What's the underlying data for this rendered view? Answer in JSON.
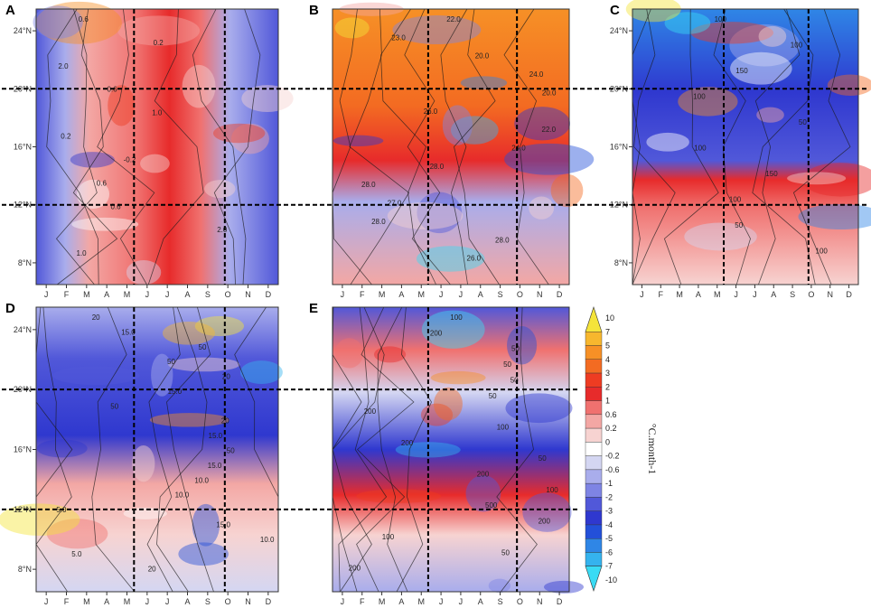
{
  "figure": {
    "colorbar": {
      "levels": [
        "10",
        "7",
        "5",
        "4",
        "3",
        "2",
        "1",
        "0.6",
        "0.2",
        "0",
        "-0.2",
        "-0.6",
        "-1",
        "-2",
        "-3",
        "-4",
        "-5",
        "-6",
        "-7",
        "-10"
      ],
      "colors": [
        "#f5e43a",
        "#f7b72e",
        "#f69026",
        "#f36b22",
        "#ee3c22",
        "#e72b2b",
        "#f0716f",
        "#f3a7a4",
        "#f7d3d1",
        "#ffffff",
        "#d4d6f2",
        "#a9adec",
        "#7e84e4",
        "#5158d9",
        "#2f38cf",
        "#2350d9",
        "#2f86e6",
        "#35b3ee",
        "#39dbf4"
      ],
      "title": "°C.month-1"
    }
  },
  "chart_data": [
    {
      "panel": "A",
      "type": "heatmap",
      "x_ticks": [
        "J",
        "F",
        "M",
        "A",
        "M",
        "J",
        "J",
        "A",
        "S",
        "O",
        "N",
        "D"
      ],
      "y_ticks": [
        "24°N",
        "20°N",
        "16°N",
        "12°N",
        "8°N"
      ],
      "ylim": [
        6.5,
        25.5
      ],
      "contour_labels": [
        "0.6",
        "0.2",
        "2.0",
        "0.6",
        "1.0",
        "0.2",
        "-0.2",
        "0.6",
        "0.6",
        "2.0",
        "1.0"
      ]
    },
    {
      "panel": "B",
      "type": "heatmap",
      "x_ticks": [
        "J",
        "F",
        "M",
        "A",
        "M",
        "J",
        "J",
        "A",
        "S",
        "O",
        "N",
        "D"
      ],
      "y_ticks": [],
      "ylim": [
        6.5,
        25.5
      ],
      "contour_labels": [
        "22.0",
        "23.0",
        "20.0",
        "24.0",
        "20.0",
        "26.0",
        "22.0",
        "24.0",
        "28.0",
        "28.0",
        "27.0",
        "28.0",
        "28.0",
        "26.0"
      ]
    },
    {
      "panel": "C",
      "type": "heatmap",
      "x_ticks": [
        "J",
        "F",
        "M",
        "A",
        "M",
        "J",
        "J",
        "A",
        "S",
        "O",
        "N",
        "D"
      ],
      "y_ticks": [
        "24°N",
        "20°N",
        "16°N",
        "12°N",
        "8°N"
      ],
      "ylim": [
        6.5,
        25.5
      ],
      "contour_labels": [
        "100",
        "100",
        "150",
        "100",
        "50",
        "100",
        "150",
        "100",
        "50",
        "100"
      ]
    },
    {
      "panel": "D",
      "type": "heatmap",
      "x_ticks": [
        "J",
        "F",
        "M",
        "A",
        "M",
        "J",
        "J",
        "A",
        "S",
        "O",
        "N",
        "D"
      ],
      "y_ticks": [
        "24°N",
        "20°N",
        "16°N",
        "12°N",
        "8°N"
      ],
      "ylim": [
        6.5,
        25.5
      ],
      "contour_labels": [
        "20",
        "15.0",
        "50",
        "50",
        "20",
        "15.0",
        "50",
        "20",
        "15.0",
        "50",
        "15.0",
        "10.0",
        "10.0",
        "5.0",
        "15.0",
        "10.0",
        "5.0",
        "20"
      ]
    },
    {
      "panel": "E",
      "type": "heatmap",
      "x_ticks": [
        "J",
        "F",
        "M",
        "A",
        "M",
        "J",
        "J",
        "A",
        "S",
        "O",
        "N",
        "D"
      ],
      "y_ticks": [],
      "ylim": [
        6.5,
        25.5
      ],
      "contour_labels": [
        "100",
        "200",
        "50",
        "50",
        "50",
        "50",
        "200",
        "100",
        "200",
        "50",
        "200",
        "100",
        "500",
        "200",
        "100",
        "50",
        "200"
      ]
    }
  ]
}
